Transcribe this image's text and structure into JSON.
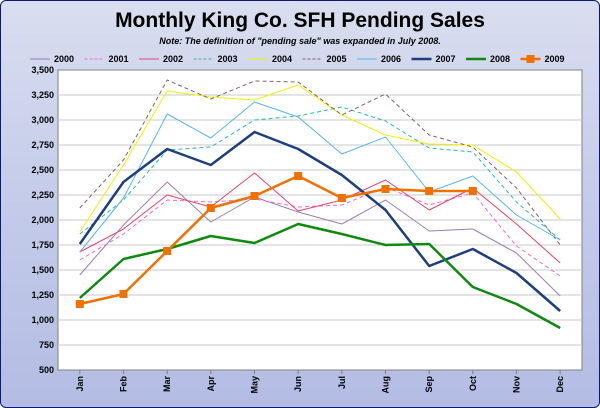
{
  "chart_data": {
    "type": "line",
    "title": "Monthly King Co. SFH Pending Sales",
    "subtitle": "Note: The definition of \"pending sale\" was expanded in July 2008.",
    "xlabel": "",
    "ylabel": "",
    "categories": [
      "Jan",
      "Feb",
      "Mar",
      "Apr",
      "May",
      "Jun",
      "Jul",
      "Aug",
      "Sep",
      "Oct",
      "Nov",
      "Dec"
    ],
    "ylim": [
      500,
      3500
    ],
    "yticks": [
      "500",
      "750",
      "1,000",
      "1,250",
      "1,500",
      "1,750",
      "2,000",
      "2,250",
      "2,500",
      "2,750",
      "3,000",
      "3,250",
      "3,500"
    ],
    "grid": true,
    "legend_position": "top",
    "series": [
      {
        "name": "2000",
        "color": "#9b7fb0",
        "dash": "solid",
        "width": 1,
        "values": [
          1450,
          1950,
          2380,
          1980,
          2230,
          2080,
          1960,
          2200,
          1890,
          1910,
          1670,
          1240
        ]
      },
      {
        "name": "2001",
        "color": "#ff66cc",
        "dash": "dashed",
        "width": 1,
        "values": [
          1600,
          1860,
          2200,
          2180,
          2210,
          2130,
          2150,
          2330,
          2150,
          2270,
          1740,
          1440
        ]
      },
      {
        "name": "2002",
        "color": "#e8436a",
        "dash": "solid",
        "width": 1,
        "values": [
          1680,
          1910,
          2250,
          2130,
          2470,
          2090,
          2200,
          2400,
          2100,
          2320,
          1960,
          1570
        ]
      },
      {
        "name": "2003",
        "color": "#2cb8a8",
        "dash": "dashed",
        "width": 1,
        "values": [
          1860,
          2200,
          2700,
          2730,
          3000,
          3040,
          3130,
          2990,
          2720,
          2680,
          2180,
          1800
        ]
      },
      {
        "name": "2004",
        "color": "#f0f000",
        "dash": "solid",
        "width": 1,
        "values": [
          1880,
          2550,
          3290,
          3230,
          3200,
          3350,
          3050,
          2850,
          2760,
          2750,
          2480,
          2010
        ]
      },
      {
        "name": "2005",
        "color": "#8b5e5e",
        "dash": "dashed",
        "width": 1,
        "values": [
          2120,
          2600,
          3400,
          3210,
          3390,
          3380,
          3050,
          3260,
          2850,
          2730,
          2320,
          1750
        ]
      },
      {
        "name": "2006",
        "color": "#52b8ee",
        "dash": "solid",
        "width": 1,
        "values": [
          1680,
          2220,
          3060,
          2820,
          3180,
          3030,
          2660,
          2830,
          2280,
          2440,
          2050,
          1800
        ]
      },
      {
        "name": "2007",
        "color": "#1c3f80",
        "dash": "solid",
        "width": 2.5,
        "values": [
          1760,
          2380,
          2710,
          2550,
          2880,
          2710,
          2450,
          2100,
          1540,
          1710,
          1470,
          1090
        ]
      },
      {
        "name": "2008",
        "color": "#0e8a0e",
        "dash": "solid",
        "width": 2.5,
        "values": [
          1220,
          1610,
          1710,
          1840,
          1770,
          1960,
          1860,
          1750,
          1760,
          1330,
          1160,
          920
        ]
      },
      {
        "name": "2009",
        "color": "#f07000",
        "dash": "solid",
        "width": 2.5,
        "marker": "square",
        "values": [
          1160,
          1260,
          1690,
          2120,
          2240,
          2440,
          2220,
          2310,
          2290,
          2290,
          null,
          null
        ]
      }
    ]
  }
}
